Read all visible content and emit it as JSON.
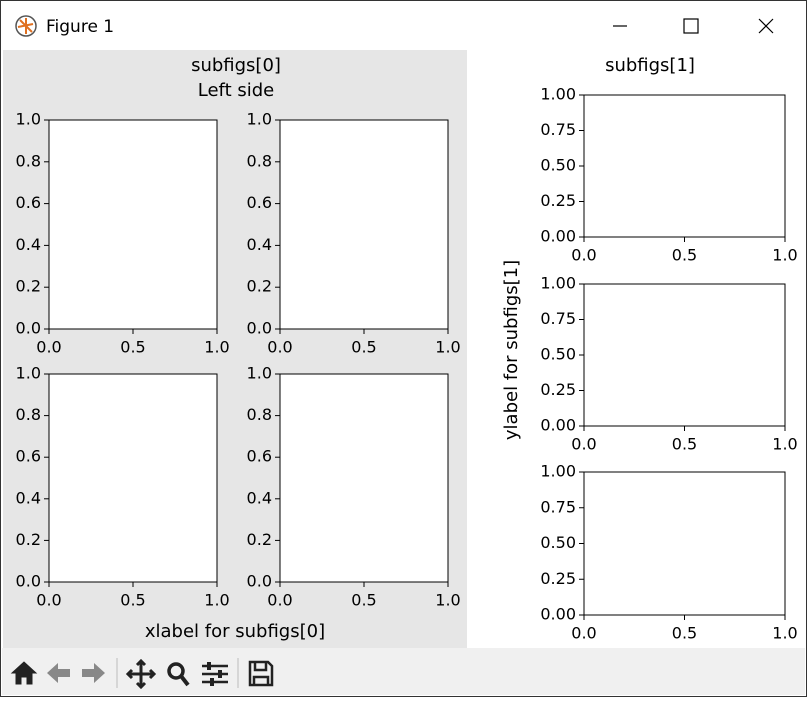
{
  "window": {
    "title": "Figure 1"
  },
  "subfigs": [
    {
      "title_lines": [
        "subfigs[0]",
        "Left side"
      ],
      "xlabel": "xlabel for subfigs[0]",
      "xticks": [
        {
          "value": 0,
          "label": "0.0"
        },
        {
          "value": 0.5,
          "label": "0.5"
        },
        {
          "value": 1,
          "label": "1.0"
        }
      ],
      "yticks": [
        {
          "value": 0,
          "label": "0.0"
        },
        {
          "value": 0.2,
          "label": "0.2"
        },
        {
          "value": 0.4,
          "label": "0.4"
        },
        {
          "value": 0.6,
          "label": "0.6"
        },
        {
          "value": 0.8,
          "label": "0.8"
        },
        {
          "value": 1,
          "label": "1.0"
        }
      ],
      "axes": [
        {
          "xlim": [
            0,
            1
          ],
          "ylim": [
            0,
            1
          ]
        },
        {
          "xlim": [
            0,
            1
          ],
          "ylim": [
            0,
            1
          ]
        },
        {
          "xlim": [
            0,
            1
          ],
          "ylim": [
            0,
            1
          ]
        },
        {
          "xlim": [
            0,
            1
          ],
          "ylim": [
            0,
            1
          ]
        }
      ]
    },
    {
      "title_lines": [
        "subfigs[1]"
      ],
      "ylabel": "ylabel for subfigs[1]",
      "xticks": [
        {
          "value": 0,
          "label": "0.0"
        },
        {
          "value": 0.5,
          "label": "0.5"
        },
        {
          "value": 1,
          "label": "1.0"
        }
      ],
      "yticks": [
        {
          "value": 0,
          "label": "0.00"
        },
        {
          "value": 0.25,
          "label": "0.25"
        },
        {
          "value": 0.5,
          "label": "0.50"
        },
        {
          "value": 0.75,
          "label": "0.75"
        },
        {
          "value": 1,
          "label": "1.00"
        }
      ],
      "axes": [
        {
          "xlim": [
            0,
            1
          ],
          "ylim": [
            0,
            1
          ]
        },
        {
          "xlim": [
            0,
            1
          ],
          "ylim": [
            0,
            1
          ]
        },
        {
          "xlim": [
            0,
            1
          ],
          "ylim": [
            0,
            1
          ]
        }
      ]
    }
  ]
}
